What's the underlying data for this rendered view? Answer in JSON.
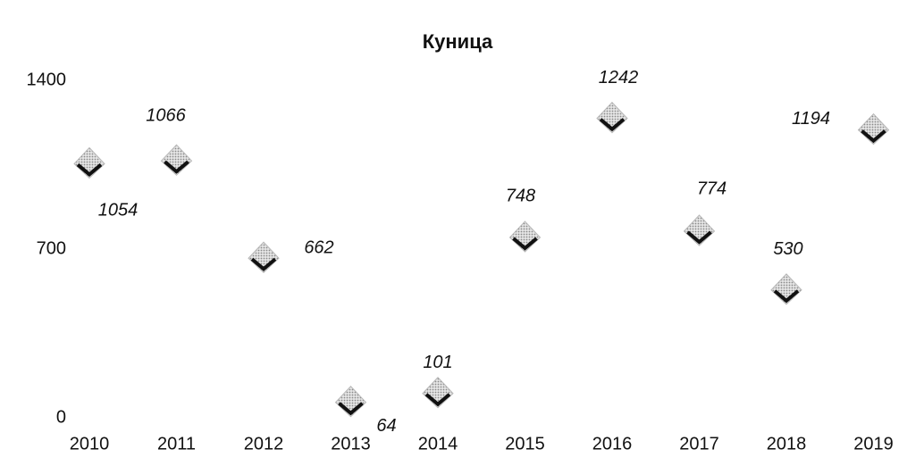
{
  "chart_data": {
    "type": "scatter",
    "title": "Куница",
    "categories": [
      "2010",
      "2011",
      "2012",
      "2013",
      "2014",
      "2015",
      "2016",
      "2017",
      "2018",
      "2019"
    ],
    "values": [
      1054,
      1066,
      662,
      64,
      101,
      748,
      1242,
      774,
      530,
      1194
    ],
    "color": "#b8b8b8",
    "ylim": [
      0,
      1400
    ],
    "yticks": [
      0,
      700,
      1400
    ],
    "grid": false
  }
}
